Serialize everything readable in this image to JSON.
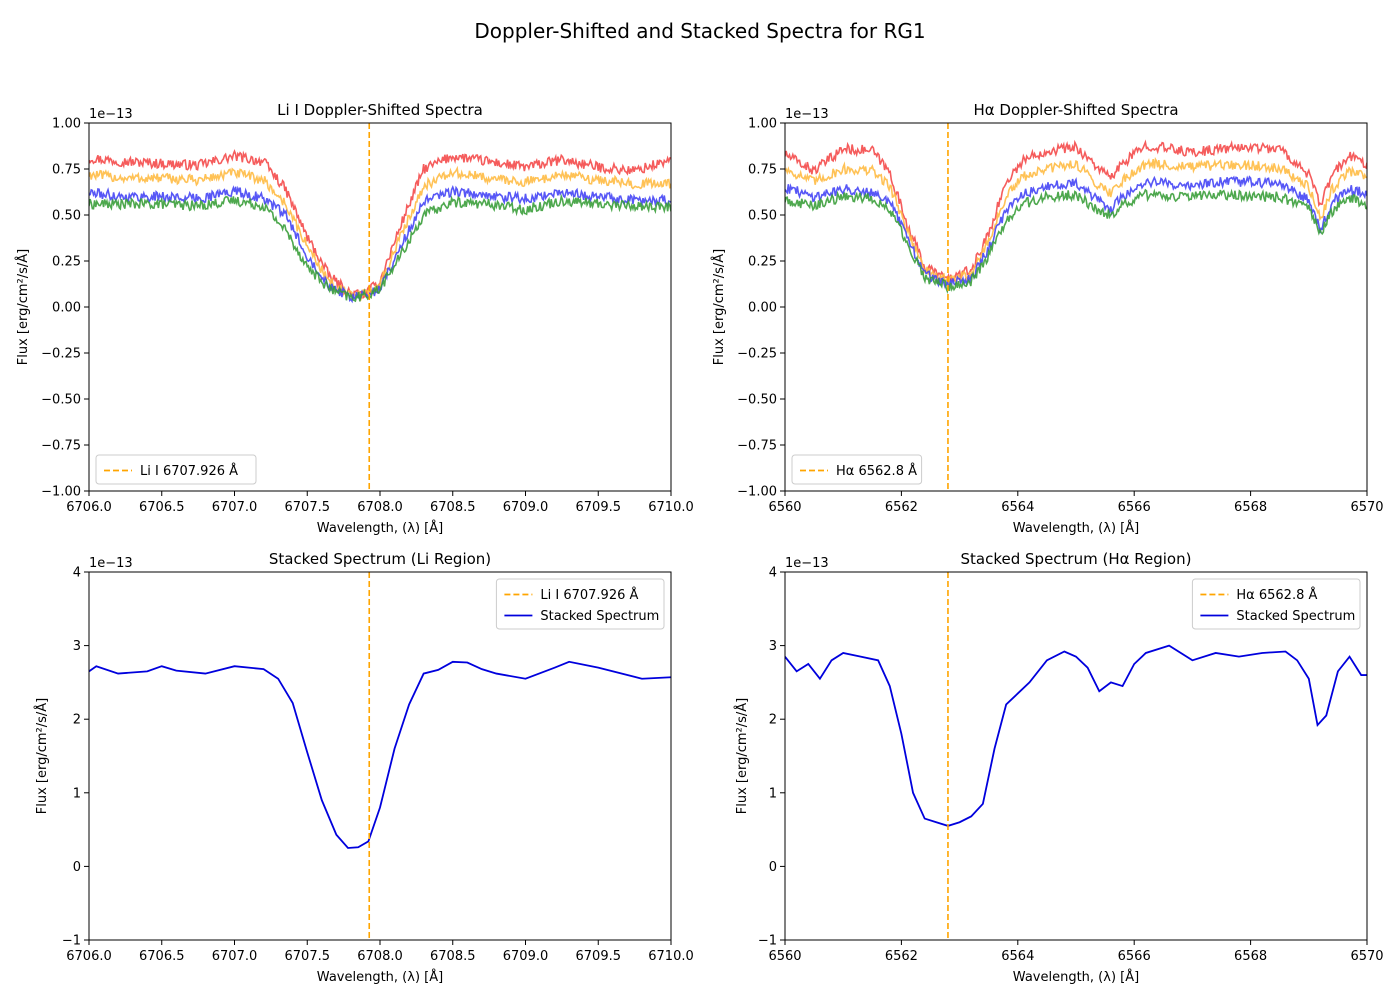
{
  "figure": {
    "title": "Doppler-Shifted and Stacked Spectra for RG1"
  },
  "chart_data": [
    {
      "type": "line",
      "title": "Li I Doppler-Shifted Spectra",
      "xlabel": "Wavelength, (λ) [Å]",
      "ylabel": "Flux [erg/cm²/s/Å]",
      "offset_label": "1e−13",
      "xlim": [
        6706.0,
        6710.0
      ],
      "ylim": [
        -1.0,
        1.0
      ],
      "xticks": [
        6706.0,
        6706.5,
        6707.0,
        6707.5,
        6708.0,
        6708.5,
        6709.0,
        6709.5,
        6710.0
      ],
      "xtick_labels": [
        "6706.0",
        "6706.5",
        "6707.0",
        "6707.5",
        "6708.0",
        "6708.5",
        "6709.0",
        "6709.5",
        "6710.0"
      ],
      "yticks": [
        -1.0,
        -0.75,
        -0.5,
        -0.25,
        0.0,
        0.25,
        0.5,
        0.75,
        1.0
      ],
      "ytick_labels": [
        "−1.00",
        "−0.75",
        "−0.50",
        "−0.25",
        "0.00",
        "0.25",
        "0.50",
        "0.75",
        "1.00"
      ],
      "legend": {
        "placement": "lower-left",
        "entries": [
          {
            "label": "Li I 6707.926 Å",
            "style": "dashed",
            "color": "#ffa500"
          }
        ]
      },
      "vlines": [
        {
          "x": 6707.926,
          "label": "Li I 6707.926 Å",
          "color": "#ffa500",
          "style": "dashed"
        }
      ],
      "series": [
        {
          "color": "#f44a4a",
          "x": [
            6706.0,
            6706.25,
            6706.5,
            6706.75,
            6707.0,
            6707.2,
            6707.35,
            6707.5,
            6707.65,
            6707.8,
            6707.9,
            6708.0,
            6708.15,
            6708.3,
            6708.5,
            6708.75,
            6709.0,
            6709.25,
            6709.5,
            6709.75,
            6710.0
          ],
          "values": [
            0.81,
            0.79,
            0.78,
            0.77,
            0.82,
            0.79,
            0.64,
            0.38,
            0.17,
            0.07,
            0.07,
            0.14,
            0.46,
            0.75,
            0.82,
            0.79,
            0.76,
            0.8,
            0.76,
            0.74,
            0.8
          ]
        },
        {
          "color": "#ffbb44",
          "x": [
            6706.0,
            6706.25,
            6706.5,
            6706.75,
            6707.0,
            6707.2,
            6707.35,
            6707.5,
            6707.65,
            6707.8,
            6707.9,
            6708.0,
            6708.15,
            6708.3,
            6708.5,
            6708.75,
            6709.0,
            6709.25,
            6709.5,
            6709.75,
            6710.0
          ],
          "values": [
            0.72,
            0.7,
            0.7,
            0.69,
            0.73,
            0.69,
            0.56,
            0.33,
            0.14,
            0.06,
            0.07,
            0.12,
            0.4,
            0.66,
            0.73,
            0.7,
            0.68,
            0.72,
            0.69,
            0.67,
            0.67
          ]
        },
        {
          "color": "#4545f5",
          "x": [
            6706.0,
            6706.25,
            6706.5,
            6706.75,
            6707.0,
            6707.2,
            6707.35,
            6707.5,
            6707.65,
            6707.8,
            6707.9,
            6708.0,
            6708.15,
            6708.3,
            6708.5,
            6708.75,
            6709.0,
            6709.25,
            6709.5,
            6709.75,
            6710.0
          ],
          "values": [
            0.62,
            0.6,
            0.6,
            0.59,
            0.63,
            0.59,
            0.5,
            0.28,
            0.12,
            0.05,
            0.06,
            0.1,
            0.34,
            0.57,
            0.63,
            0.6,
            0.59,
            0.62,
            0.6,
            0.58,
            0.58
          ]
        },
        {
          "color": "#3b9e3b",
          "x": [
            6706.0,
            6706.25,
            6706.5,
            6706.75,
            6707.0,
            6707.2,
            6707.35,
            6707.5,
            6707.65,
            6707.8,
            6707.9,
            6708.0,
            6708.15,
            6708.3,
            6708.5,
            6708.75,
            6709.0,
            6709.25,
            6709.5,
            6709.75,
            6710.0
          ],
          "values": [
            0.56,
            0.56,
            0.56,
            0.55,
            0.58,
            0.55,
            0.42,
            0.22,
            0.1,
            0.05,
            0.06,
            0.1,
            0.29,
            0.5,
            0.57,
            0.56,
            0.53,
            0.58,
            0.56,
            0.55,
            0.54
          ]
        }
      ]
    },
    {
      "type": "line",
      "title": "Hα Doppler-Shifted Spectra",
      "xlabel": "Wavelength, (λ) [Å]",
      "ylabel": "Flux [erg/cm²/s/Å]",
      "offset_label": "1e−13",
      "xlim": [
        6560,
        6570
      ],
      "ylim": [
        -1.0,
        1.0
      ],
      "xticks": [
        6560,
        6562,
        6564,
        6566,
        6568,
        6570
      ],
      "xtick_labels": [
        "6560",
        "6562",
        "6564",
        "6566",
        "6568",
        "6570"
      ],
      "yticks": [
        -1.0,
        -0.75,
        -0.5,
        -0.25,
        0.0,
        0.25,
        0.5,
        0.75,
        1.0
      ],
      "ytick_labels": [
        "−1.00",
        "−0.75",
        "−0.50",
        "−0.25",
        "0.00",
        "0.25",
        "0.50",
        "0.75",
        "1.00"
      ],
      "legend": {
        "placement": "lower-left",
        "entries": [
          {
            "label": "Hα 6562.8 Å",
            "style": "dashed",
            "color": "#ffa500"
          }
        ]
      },
      "vlines": [
        {
          "x": 6562.8,
          "label": "Hα 6562.8 Å",
          "color": "#ffa500",
          "style": "dashed"
        }
      ],
      "series": [
        {
          "color": "#f44a4a",
          "x": [
            6560,
            6560.5,
            6561,
            6561.5,
            6561.8,
            6562.1,
            6562.4,
            6562.8,
            6563.2,
            6563.5,
            6563.8,
            6564.1,
            6564.5,
            6565,
            6565.4,
            6565.6,
            6565.8,
            6566.2,
            6566.6,
            6567,
            6567.5,
            6568,
            6568.5,
            6569,
            6569.2,
            6569.4,
            6569.7,
            6570
          ],
          "values": [
            0.83,
            0.74,
            0.86,
            0.85,
            0.73,
            0.45,
            0.22,
            0.15,
            0.2,
            0.4,
            0.68,
            0.8,
            0.85,
            0.87,
            0.75,
            0.7,
            0.78,
            0.88,
            0.86,
            0.84,
            0.86,
            0.87,
            0.86,
            0.72,
            0.55,
            0.72,
            0.82,
            0.78
          ]
        },
        {
          "color": "#ffbb44",
          "x": [
            6560,
            6560.5,
            6561,
            6561.5,
            6561.8,
            6562.1,
            6562.4,
            6562.8,
            6563.2,
            6563.5,
            6563.8,
            6564.1,
            6564.5,
            6565,
            6565.4,
            6565.6,
            6565.8,
            6566.2,
            6566.6,
            6567,
            6567.5,
            6568,
            6568.5,
            6569,
            6569.2,
            6569.4,
            6569.7,
            6570
          ],
          "values": [
            0.75,
            0.68,
            0.75,
            0.74,
            0.66,
            0.42,
            0.2,
            0.14,
            0.18,
            0.36,
            0.6,
            0.71,
            0.75,
            0.78,
            0.66,
            0.62,
            0.69,
            0.78,
            0.77,
            0.76,
            0.77,
            0.77,
            0.76,
            0.65,
            0.48,
            0.64,
            0.74,
            0.71
          ]
        },
        {
          "color": "#4545f5",
          "x": [
            6560,
            6560.5,
            6561,
            6561.5,
            6561.8,
            6562.1,
            6562.4,
            6562.8,
            6563.2,
            6563.5,
            6563.8,
            6564.1,
            6564.5,
            6565,
            6565.4,
            6565.6,
            6565.8,
            6566.2,
            6566.6,
            6567,
            6567.5,
            6568,
            6568.5,
            6569,
            6569.2,
            6569.4,
            6569.7,
            6570
          ],
          "values": [
            0.65,
            0.6,
            0.64,
            0.63,
            0.57,
            0.38,
            0.18,
            0.12,
            0.16,
            0.32,
            0.53,
            0.62,
            0.65,
            0.68,
            0.57,
            0.53,
            0.6,
            0.68,
            0.67,
            0.66,
            0.68,
            0.68,
            0.67,
            0.58,
            0.42,
            0.57,
            0.64,
            0.62
          ]
        },
        {
          "color": "#3b9e3b",
          "x": [
            6560,
            6560.5,
            6561,
            6561.5,
            6561.8,
            6562.1,
            6562.4,
            6562.8,
            6563.2,
            6563.5,
            6563.8,
            6564.1,
            6564.5,
            6565,
            6565.4,
            6565.6,
            6565.8,
            6566.2,
            6566.6,
            6567,
            6567.5,
            6568,
            6568.5,
            6569,
            6569.2,
            6569.4,
            6569.7,
            6570
          ],
          "values": [
            0.58,
            0.55,
            0.6,
            0.59,
            0.53,
            0.35,
            0.16,
            0.11,
            0.14,
            0.28,
            0.47,
            0.56,
            0.6,
            0.61,
            0.52,
            0.5,
            0.55,
            0.61,
            0.6,
            0.6,
            0.61,
            0.6,
            0.6,
            0.53,
            0.4,
            0.52,
            0.59,
            0.56
          ]
        }
      ]
    },
    {
      "type": "line",
      "title": "Stacked Spectrum (Li Region)",
      "xlabel": "Wavelength, (λ) [Å]",
      "ylabel": "Flux [erg/cm²/s/Å]",
      "offset_label": "1e−13",
      "xlim": [
        6706.0,
        6710.0
      ],
      "ylim": [
        -1,
        4
      ],
      "xticks": [
        6706.0,
        6706.5,
        6707.0,
        6707.5,
        6708.0,
        6708.5,
        6709.0,
        6709.5,
        6710.0
      ],
      "xtick_labels": [
        "6706.0",
        "6706.5",
        "6707.0",
        "6707.5",
        "6708.0",
        "6708.5",
        "6709.0",
        "6709.5",
        "6710.0"
      ],
      "yticks": [
        -1,
        0,
        1,
        2,
        3,
        4
      ],
      "ytick_labels": [
        "−1",
        "0",
        "1",
        "2",
        "3",
        "4"
      ],
      "legend": {
        "placement": "top-right",
        "entries": [
          {
            "label": "Li I 6707.926 Å",
            "style": "dashed",
            "color": "#ffa500"
          },
          {
            "label": "Stacked Spectrum",
            "style": "solid",
            "color": "#0000dd"
          }
        ]
      },
      "vlines": [
        {
          "x": 6707.926,
          "label": "Li I 6707.926 Å",
          "color": "#ffa500",
          "style": "dashed"
        }
      ],
      "series": [
        {
          "name": "Stacked Spectrum",
          "color": "#0000dd",
          "x": [
            6706.0,
            6706.05,
            6706.2,
            6706.4,
            6706.5,
            6706.6,
            6706.8,
            6707.0,
            6707.2,
            6707.3,
            6707.4,
            6707.5,
            6707.6,
            6707.7,
            6707.78,
            6707.85,
            6707.92,
            6708.0,
            6708.1,
            6708.2,
            6708.3,
            6708.4,
            6708.5,
            6708.6,
            6708.7,
            6708.8,
            6709.0,
            6709.2,
            6709.3,
            6709.5,
            6709.8,
            6710.0
          ],
          "values": [
            2.65,
            2.72,
            2.62,
            2.65,
            2.72,
            2.66,
            2.62,
            2.72,
            2.68,
            2.55,
            2.22,
            1.55,
            0.9,
            0.43,
            0.25,
            0.26,
            0.34,
            0.8,
            1.6,
            2.2,
            2.62,
            2.67,
            2.78,
            2.77,
            2.68,
            2.62,
            2.55,
            2.7,
            2.78,
            2.7,
            2.55,
            2.57
          ]
        }
      ]
    },
    {
      "type": "line",
      "title": "Stacked Spectrum (Hα Region)",
      "xlabel": "Wavelength, (λ) [Å]",
      "ylabel": "Flux [erg/cm²/s/Å]",
      "offset_label": "1e−13",
      "xlim": [
        6560,
        6570
      ],
      "ylim": [
        -1,
        4
      ],
      "xticks": [
        6560,
        6562,
        6564,
        6566,
        6568,
        6570
      ],
      "xtick_labels": [
        "6560",
        "6562",
        "6564",
        "6566",
        "6568",
        "6570"
      ],
      "yticks": [
        -1,
        0,
        1,
        2,
        3,
        4
      ],
      "ytick_labels": [
        "−1",
        "0",
        "1",
        "2",
        "3",
        "4"
      ],
      "legend": {
        "placement": "top-right",
        "entries": [
          {
            "label": "Hα 6562.8 Å",
            "style": "dashed",
            "color": "#ffa500"
          },
          {
            "label": "Stacked Spectrum",
            "style": "solid",
            "color": "#0000dd"
          }
        ]
      },
      "vlines": [
        {
          "x": 6562.8,
          "label": "Hα 6562.8 Å",
          "color": "#ffa500",
          "style": "dashed"
        }
      ],
      "series": [
        {
          "name": "Stacked Spectrum",
          "color": "#0000dd",
          "x": [
            6560,
            6560.2,
            6560.4,
            6560.6,
            6560.8,
            6561.0,
            6561.3,
            6561.6,
            6561.8,
            6562.0,
            6562.2,
            6562.4,
            6562.6,
            6562.8,
            6563.0,
            6563.2,
            6563.4,
            6563.6,
            6563.8,
            6564.0,
            6564.2,
            6564.5,
            6564.8,
            6565.0,
            6565.2,
            6565.4,
            6565.6,
            6565.8,
            6566.0,
            6566.2,
            6566.6,
            6567.0,
            6567.4,
            6567.8,
            6568.2,
            6568.6,
            6568.8,
            6569.0,
            6569.15,
            6569.3,
            6569.5,
            6569.7,
            6569.9,
            6570.0
          ],
          "values": [
            2.85,
            2.65,
            2.75,
            2.55,
            2.8,
            2.9,
            2.85,
            2.8,
            2.45,
            1.8,
            1.0,
            0.65,
            0.6,
            0.55,
            0.6,
            0.68,
            0.85,
            1.6,
            2.2,
            2.35,
            2.5,
            2.8,
            2.92,
            2.85,
            2.7,
            2.38,
            2.5,
            2.45,
            2.75,
            2.9,
            3.0,
            2.8,
            2.9,
            2.85,
            2.9,
            2.92,
            2.8,
            2.55,
            1.92,
            2.05,
            2.65,
            2.85,
            2.6,
            2.6
          ]
        }
      ]
    }
  ]
}
